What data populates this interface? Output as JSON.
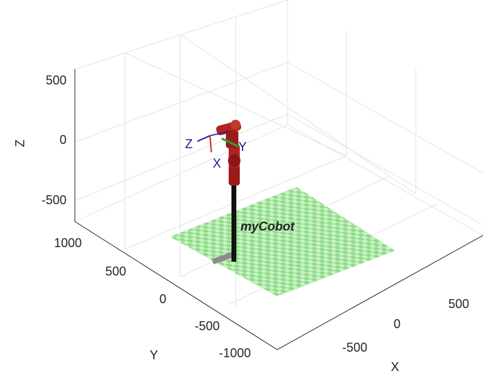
{
  "axes": {
    "x": {
      "label": "X",
      "ticks": [
        -500,
        0,
        500
      ]
    },
    "y": {
      "label": "Y",
      "ticks": [
        -1000,
        -500,
        0,
        500,
        1000
      ]
    },
    "z": {
      "label": "Z",
      "ticks": [
        -500,
        0,
        500
      ]
    }
  },
  "robot": {
    "label": "myCobot"
  },
  "frame": {
    "axis_labels": [
      "Z",
      "Y",
      "X"
    ]
  }
}
